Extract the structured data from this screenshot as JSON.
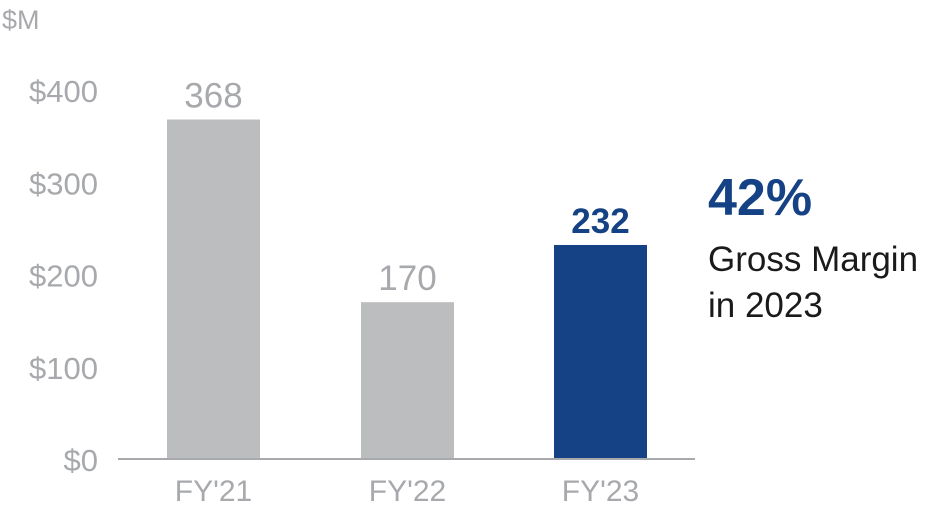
{
  "chart_data": {
    "type": "bar",
    "unit_label": "$M",
    "categories": [
      "FY'21",
      "FY'22",
      "FY'23"
    ],
    "values": [
      368,
      170,
      232
    ],
    "data_labels": [
      "368",
      "170",
      "232"
    ],
    "ylim": [
      0,
      400
    ],
    "yticks": [
      0,
      100,
      200,
      300,
      400
    ],
    "ytick_labels": [
      "$0",
      "$100",
      "$200",
      "$300",
      "$400"
    ],
    "grid": false,
    "highlight_index": 2,
    "colors": {
      "bar": "#bcbdbf",
      "highlight": "#154284",
      "label": "#a7a9ac",
      "axis": "#a7a9ac"
    }
  },
  "annotation": {
    "value": "42%",
    "line1": "Gross Margin",
    "line2": "in 2023"
  }
}
